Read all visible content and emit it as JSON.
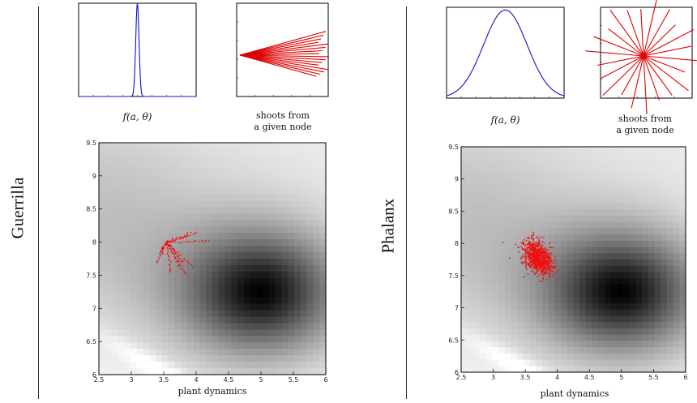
{
  "panels": [
    {
      "label": "Guerrilla",
      "f_caption": "f(a, θ)",
      "shoots_caption": "shoots from\na given node",
      "main_xlabel": "plant dynamics",
      "main_xticks": [
        "2.5",
        "3",
        "3.5",
        "4",
        "4.5",
        "5",
        "5.5",
        "6"
      ],
      "main_yticks": [
        "6",
        "6.5",
        "7",
        "7.5",
        "8",
        "8.5",
        "9",
        "9.5"
      ]
    },
    {
      "label": "Phalanx",
      "f_caption": "f(a, θ)",
      "shoots_caption": "shoots from\na given node",
      "main_xlabel": "plant dynamics",
      "main_xticks": [
        "2.5",
        "3",
        "3.5",
        "4",
        "4.5",
        "5",
        "5.5",
        "6"
      ],
      "main_yticks": [
        "6",
        "6.5",
        "7",
        "7.5",
        "8",
        "8.5",
        "9",
        "9.5"
      ]
    }
  ],
  "colors": {
    "curve": "#1010cc",
    "shoots": "#dd0000",
    "points": "#ee1111",
    "axis": "#000000"
  }
}
